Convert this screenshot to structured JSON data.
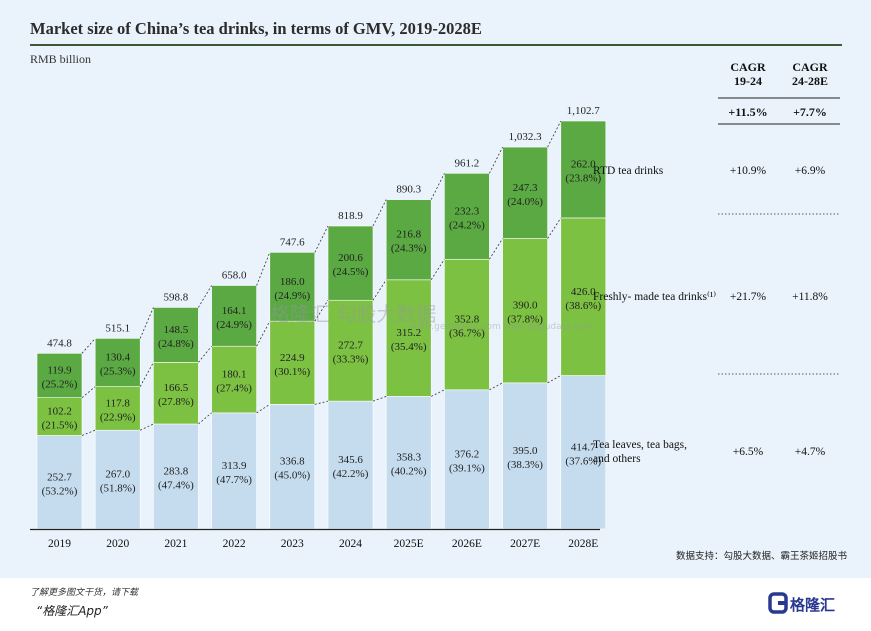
{
  "title": "Market size of China’s tea drinks, in terms of GMV, 2019-2028E",
  "unit": "RMB billion",
  "source": "数据支持：勾股大数据、霸王茶姬招股书",
  "promo": {
    "line1": "了解更多图文干货，请下载",
    "line2": "“格隆汇App”"
  },
  "logo_text": "格隆汇",
  "watermark": {
    "text": "格隆汇  勾股大数据",
    "url": "www.gelonghui.com  www.gogudata.com"
  },
  "colors": {
    "bottom": "#c5dcef",
    "middle": "#7cc142",
    "top": "#5aa943",
    "panel": "#eaf3fb",
    "rule": "#3b5a33"
  },
  "cagr_header": {
    "col1": [
      "CAGR",
      "19-24"
    ],
    "col2": [
      "CAGR",
      "24-28E"
    ],
    "total": [
      "+11.5%",
      "+7.7%"
    ]
  },
  "chart_data": {
    "type": "bar",
    "stacked": true,
    "title": "Market size of China’s tea drinks, in terms of GMV, 2019-2028E",
    "ylabel": "RMB billion",
    "categories": [
      "2019",
      "2020",
      "2021",
      "2022",
      "2023",
      "2024",
      "2025E",
      "2026E",
      "2027E",
      "2028E"
    ],
    "totals": [
      "474.8",
      "515.1",
      "598.8",
      "658.0",
      "747.6",
      "818.9",
      "890.3",
      "961.2",
      "1,032.3",
      "1,102.7"
    ],
    "series": [
      {
        "name": "Tea leaves, tea bags, and others",
        "label_lines": [
          "Tea leaves, tea bags,",
          "and others"
        ],
        "cagr": [
          "+6.5%",
          "+4.7%"
        ],
        "values": [
          252.7,
          267.0,
          283.8,
          313.9,
          336.8,
          345.6,
          358.3,
          376.2,
          395.0,
          414.7
        ],
        "shares": [
          "(53.2%)",
          "(51.8%)",
          "(47.4%)",
          "(47.7%)",
          "(45.0%)",
          "(42.2%)",
          "(40.2%)",
          "(39.1%)",
          "(38.3%)",
          "(37.6%)"
        ]
      },
      {
        "name": "Freshly- made tea drinks⁽¹⁾",
        "label_lines": [
          "Freshly- made tea drinks⁽¹⁾"
        ],
        "cagr": [
          "+21.7%",
          "+11.8%"
        ],
        "values": [
          102.2,
          117.8,
          166.5,
          180.1,
          224.9,
          272.7,
          315.2,
          352.8,
          390.0,
          426.0
        ],
        "shares": [
          "(21.5%)",
          "(22.9%)",
          "(27.8%)",
          "(27.4%)",
          "(30.1%)",
          "(33.3%)",
          "(35.4%)",
          "(36.7%)",
          "(37.8%)",
          "(38.6%)"
        ]
      },
      {
        "name": "RTD tea drinks",
        "label_lines": [
          "RTD tea drinks"
        ],
        "cagr": [
          "+10.9%",
          "+6.9%"
        ],
        "values": [
          119.9,
          130.4,
          148.5,
          164.1,
          186.0,
          200.6,
          216.8,
          232.3,
          247.3,
          262.0
        ],
        "shares": [
          "(25.2%)",
          "(25.3%)",
          "(24.8%)",
          "(24.9%)",
          "(24.9%)",
          "(24.5%)",
          "(24.3%)",
          "(24.2%)",
          "(24.0%)",
          "(23.8%)"
        ]
      }
    ],
    "ylim": [
      0,
      1102.7
    ],
    "legend": "right"
  }
}
